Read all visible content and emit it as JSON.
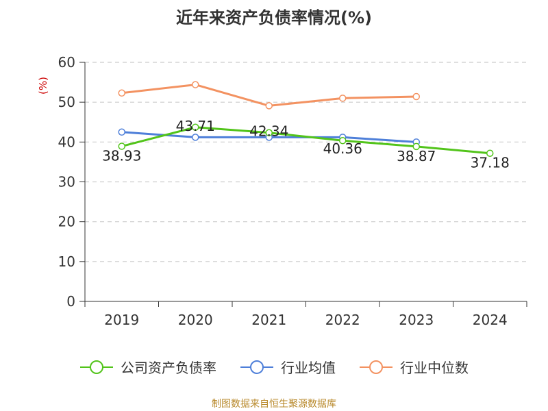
{
  "chart_data": {
    "type": "line",
    "title": "近年来资产负债率情况(%)",
    "ylabel": "(%)",
    "xlabel": "",
    "categories": [
      "2019",
      "2020",
      "2021",
      "2022",
      "2023",
      "2024"
    ],
    "ylim": [
      0,
      60
    ],
    "yticks": [
      0,
      10,
      20,
      30,
      40,
      50,
      60
    ],
    "grid": true,
    "legend_position": "bottom",
    "series": [
      {
        "name": "公司资产负债率",
        "color": "#52c41a",
        "values": [
          38.93,
          43.71,
          42.34,
          40.36,
          38.87,
          37.18
        ],
        "show_labels": true
      },
      {
        "name": "行业均值",
        "color": "#4e7fd9",
        "values": [
          42.5,
          41.2,
          41.2,
          41.2,
          40.0,
          null
        ],
        "show_labels": false
      },
      {
        "name": "行业中位数",
        "color": "#f39261",
        "values": [
          52.3,
          54.4,
          49.1,
          51.0,
          51.4,
          null
        ],
        "show_labels": false
      }
    ],
    "source": "制图数据来自恒生聚源数据库"
  }
}
